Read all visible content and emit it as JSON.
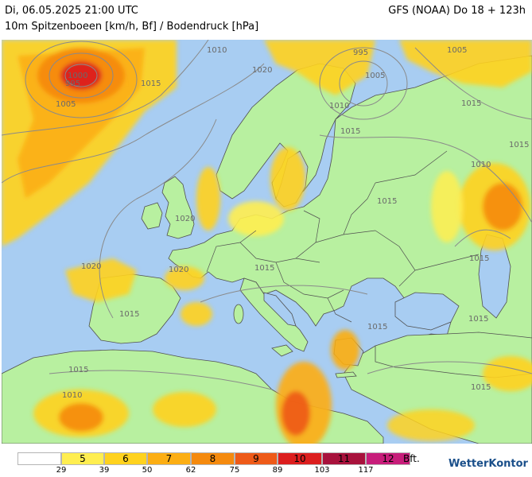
{
  "header": {
    "date_line": "Di, 06.05.2025 21:00 UTC",
    "subtitle": "10m Spitzenboeen [km/h, Bf] / Bodendruck [hPa]",
    "model": "GFS (NOAA) Do 18 + 123h"
  },
  "map": {
    "pressure_labels": [
      {
        "text": "1010"
      },
      {
        "text": "1000"
      },
      {
        "text": "995"
      },
      {
        "text": "1015"
      },
      {
        "text": "1005"
      },
      {
        "text": "1020"
      },
      {
        "text": "995"
      },
      {
        "text": "1005"
      },
      {
        "text": "1005"
      },
      {
        "text": "1010"
      },
      {
        "text": "1015"
      },
      {
        "text": "1015"
      },
      {
        "text": "1015"
      },
      {
        "text": "1010"
      },
      {
        "text": "1015"
      },
      {
        "text": "1020"
      },
      {
        "text": "1020"
      },
      {
        "text": "1020"
      },
      {
        "text": "1015"
      },
      {
        "text": "1015"
      },
      {
        "text": "1015"
      },
      {
        "text": "1015"
      },
      {
        "text": "1015"
      },
      {
        "text": "1015"
      },
      {
        "text": "1015"
      },
      {
        "text": "1010"
      }
    ],
    "colors": {
      "sea": "#a8cdf2",
      "land": "#b8f0a0",
      "border": "#505050",
      "isobar": "#8a8a8a"
    }
  },
  "legend": {
    "bft_classes": [
      {
        "label": "",
        "color": "#ffffff"
      },
      {
        "label": "5",
        "color": "#ffee50"
      },
      {
        "label": "6",
        "color": "#ffd21e"
      },
      {
        "label": "7",
        "color": "#fcae13"
      },
      {
        "label": "8",
        "color": "#f58a0e"
      },
      {
        "label": "9",
        "color": "#ee5a18"
      },
      {
        "label": "10",
        "color": "#dc1e1e"
      },
      {
        "label": "11",
        "color": "#a8123c"
      },
      {
        "label": "12",
        "color": "#c71d7a"
      }
    ],
    "kmh_ticks": [
      "29",
      "39",
      "50",
      "62",
      "75",
      "89",
      "103",
      "117"
    ],
    "unit": "Bft."
  },
  "brand": {
    "name": "WetterKontor",
    "icon": "wind-icon"
  }
}
